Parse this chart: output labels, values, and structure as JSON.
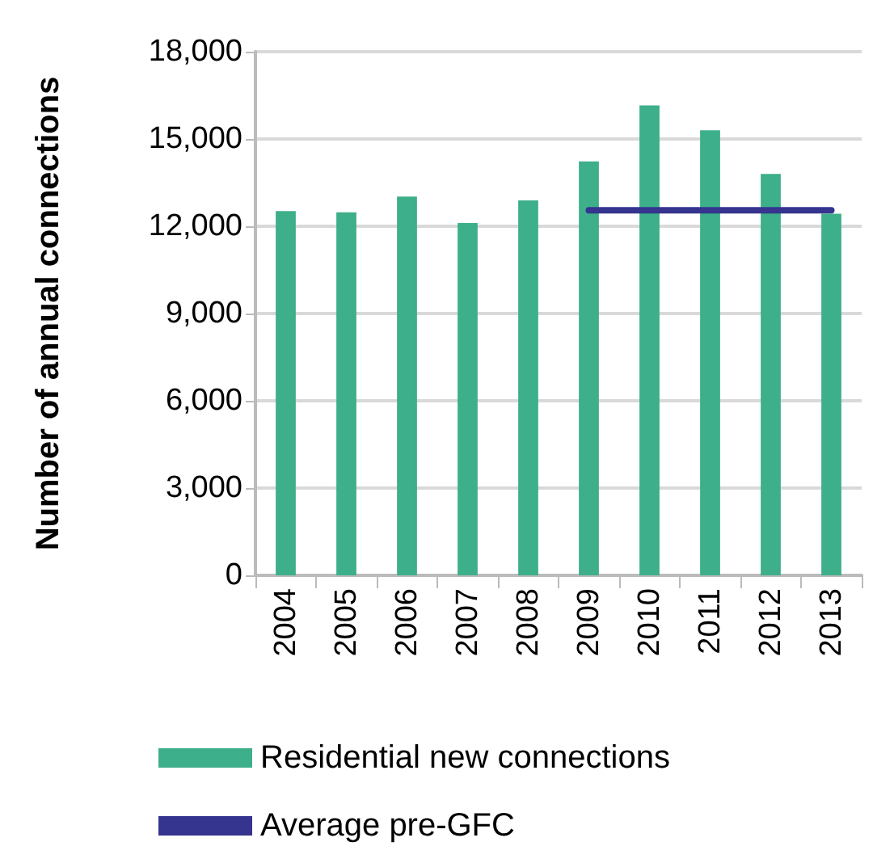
{
  "chart_data": {
    "type": "bar",
    "ylabel": "Number of annual connections",
    "categories": [
      "2004",
      "2005",
      "2006",
      "2007",
      "2008",
      "2009",
      "2010",
      "2011",
      "2012",
      "2013"
    ],
    "series": [
      {
        "name": "Residential new connections",
        "color": "#3daf8a",
        "values": [
          12520,
          12480,
          13020,
          12110,
          12890,
          14230,
          16150,
          15300,
          13800,
          12430
        ]
      },
      {
        "name": "Average pre-GFC",
        "type": "line",
        "color": "#35348f",
        "marker": "none",
        "values": [
          null,
          null,
          null,
          null,
          null,
          12550,
          12550,
          12550,
          12550,
          12550
        ]
      }
    ],
    "ylim": [
      0,
      18000
    ],
    "yticks": [
      0,
      {
        "value": 3000,
        "label": "3,000"
      },
      {
        "value": 6000,
        "label": "6,000"
      },
      {
        "value": 9000,
        "label": "9,000"
      },
      {
        "value": 12000,
        "label": "12,000"
      },
      {
        "value": 15000,
        "label": "15,000"
      },
      {
        "value": 18000,
        "label": "18,000"
      }
    ],
    "grid": "y",
    "legend": "bottom"
  }
}
